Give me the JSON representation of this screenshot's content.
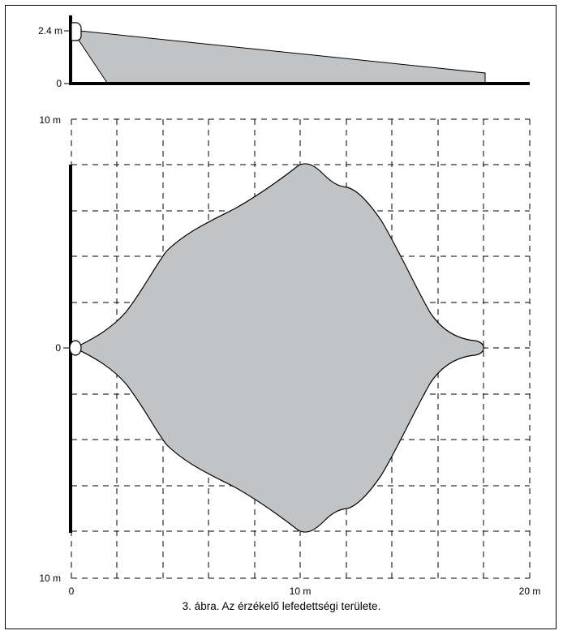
{
  "colors": {
    "coverage_fill": "#c2c3c5",
    "line": "#000000",
    "background": "#ffffff"
  },
  "side_view": {
    "height_label": "2.4 m",
    "zero_label": "0"
  },
  "top_view": {
    "y_top_label": "10 m",
    "y_zero_label": "0",
    "y_bottom_label": "10 m",
    "x_labels": [
      "0",
      "10 m",
      "20 m"
    ]
  },
  "caption": "3. ábra. Az érzékelő lefedettségi területe."
}
